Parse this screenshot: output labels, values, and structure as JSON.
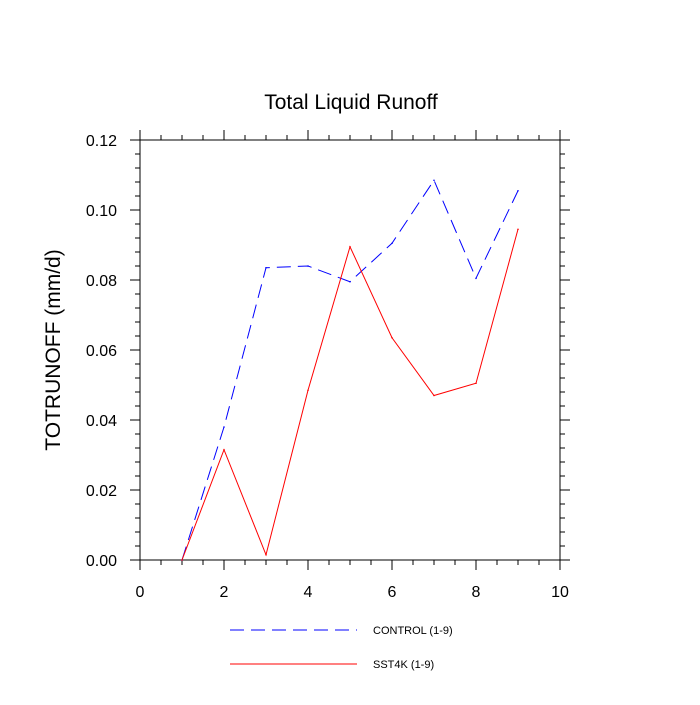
{
  "chart_data": {
    "type": "line",
    "title": "Total Liquid Runoff",
    "xlabel": "",
    "ylabel": "TOTRUNOFF  (mm/d)",
    "xlim": [
      0,
      10
    ],
    "ylim": [
      0,
      0.12
    ],
    "x_ticks": [
      "0",
      "2",
      "4",
      "6",
      "8",
      "10"
    ],
    "x_tick_values": [
      0,
      2,
      4,
      6,
      8,
      10
    ],
    "y_ticks": [
      "0.00",
      "0.02",
      "0.04",
      "0.06",
      "0.08",
      "0.10",
      "0.12"
    ],
    "y_tick_values": [
      0,
      0.02,
      0.04,
      0.06,
      0.08,
      0.1,
      0.12
    ],
    "grid": false,
    "legend_position": "bottom",
    "x": [
      1,
      2,
      3,
      4,
      5,
      6,
      7,
      8,
      9
    ],
    "series": [
      {
        "name": "CONTROL (1-9)",
        "color": "#0000ff",
        "line_style": "dashed",
        "values": [
          0.0,
          0.038,
          0.0835,
          0.084,
          0.0795,
          0.0905,
          0.1085,
          0.0805,
          0.1055
        ]
      },
      {
        "name": "SST4K (1-9)",
        "color": "#ff0000",
        "line_style": "solid",
        "values": [
          0.0,
          0.0315,
          0.0015,
          0.0485,
          0.0895,
          0.0635,
          0.047,
          0.0505,
          0.0945
        ]
      }
    ]
  }
}
